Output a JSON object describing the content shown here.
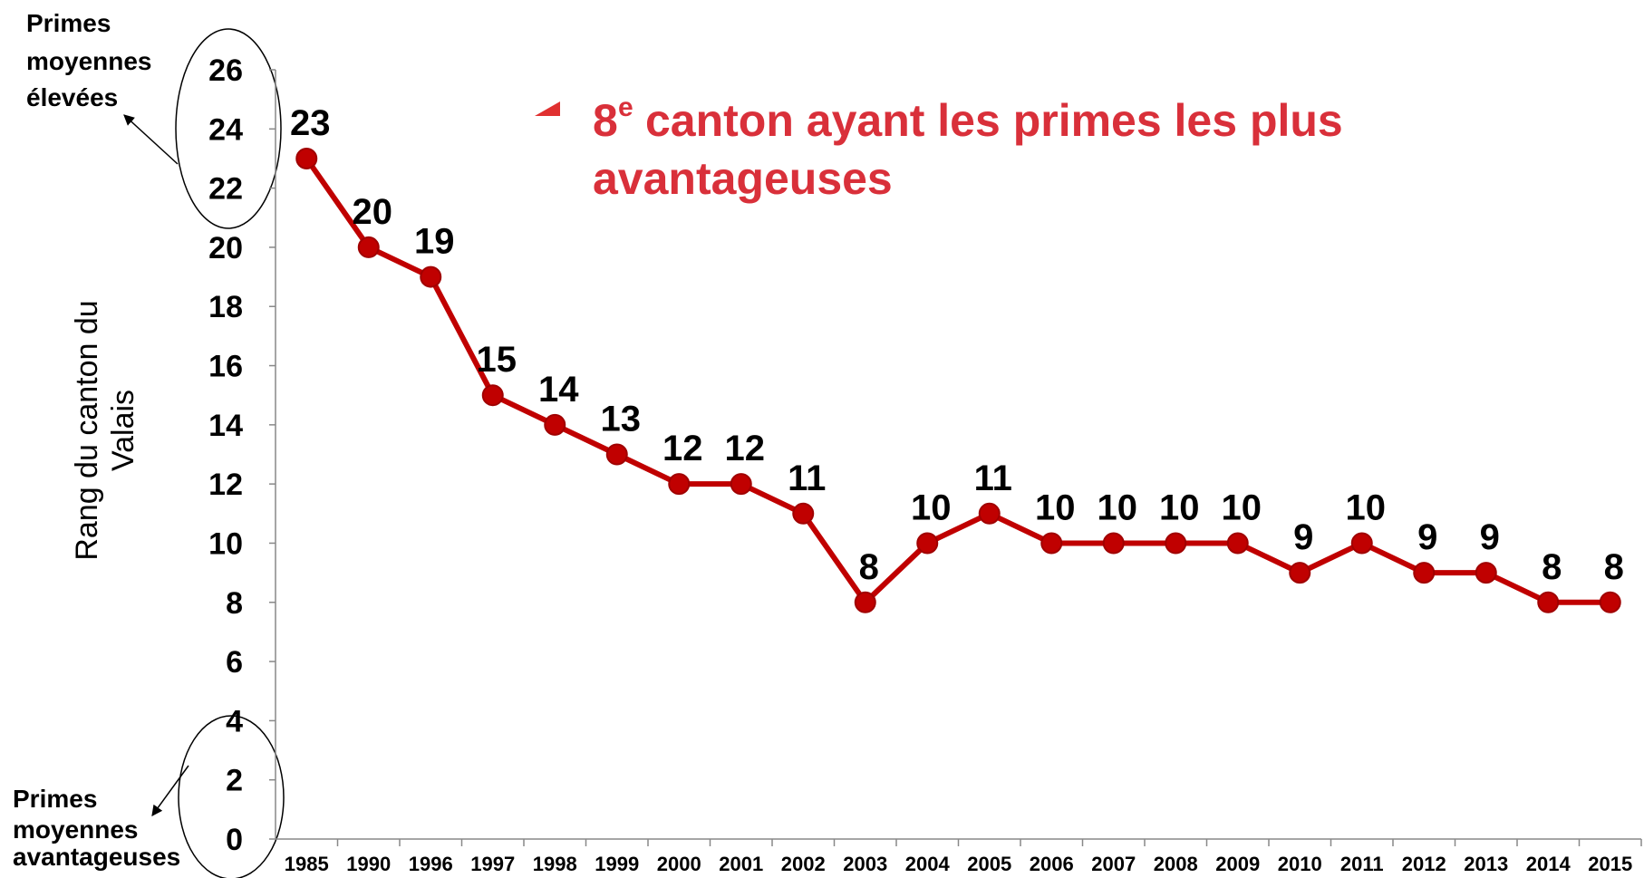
{
  "chart_data": {
    "type": "line",
    "y_label_lines": [
      "Rang du canton du",
      "Valais"
    ],
    "annotation": {
      "lead": "8",
      "sup": "e",
      "lines": [
        "canton ayant les primes les plus",
        "avantageuses"
      ]
    },
    "top_note": [
      "Primes",
      "moyennes",
      "élevées"
    ],
    "bottom_note": [
      "Primes",
      "moyennes",
      "avantageuses"
    ],
    "categories": [
      "1985",
      "1990",
      "1996",
      "1997",
      "1998",
      "1999",
      "2000",
      "2001",
      "2002",
      "2003",
      "2004",
      "2005",
      "2006",
      "2007",
      "2008",
      "2009",
      "2010",
      "2011",
      "2012",
      "2013",
      "2014",
      "2015"
    ],
    "series": [
      {
        "name": "Rang",
        "color": "#c00000",
        "values": [
          23,
          20,
          19,
          15,
          14,
          13,
          12,
          12,
          11,
          8,
          10,
          11,
          10,
          10,
          10,
          10,
          9,
          10,
          9,
          9,
          8,
          8
        ]
      }
    ],
    "ylim": [
      0,
      26
    ],
    "yticks": [
      0,
      2,
      4,
      6,
      8,
      10,
      12,
      14,
      16,
      18,
      20,
      22,
      24,
      26
    ]
  }
}
